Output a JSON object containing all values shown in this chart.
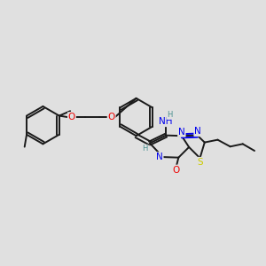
{
  "bg_color": "#e0e0e0",
  "bond_color": "#1a1a1a",
  "bond_width": 1.4,
  "dbo": 0.07,
  "figsize": [
    3.0,
    3.0
  ],
  "dpi": 100,
  "colors": {
    "N": "#0000ee",
    "O": "#ee0000",
    "S": "#cccc00",
    "H": "#4a9090",
    "C": "#1a1a1a"
  },
  "fs": 7.5,
  "fs_s": 6.0
}
